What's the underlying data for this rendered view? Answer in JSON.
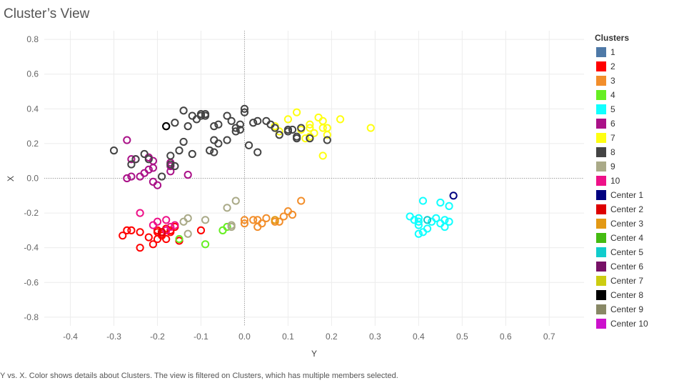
{
  "title": "Cluster’s View",
  "caption": "Y vs. X.  Color shows details about Clusters. The view is filtered on Clusters, which has multiple members selected.",
  "chart_data": {
    "type": "scatter",
    "xlabel": "Y",
    "ylabel": "X",
    "xlim": [
      -0.46,
      0.78
    ],
    "ylim": [
      -0.85,
      0.85
    ],
    "x_ticks": [
      "-0.4",
      "-0.3",
      "-0.2",
      "-0.1",
      "0.0",
      "0.1",
      "0.2",
      "0.3",
      "0.4",
      "0.5",
      "0.6",
      "0.7"
    ],
    "x_tick_values": [
      -0.4,
      -0.3,
      -0.2,
      -0.1,
      0.0,
      0.1,
      0.2,
      0.3,
      0.4,
      0.5,
      0.6,
      0.7
    ],
    "y_ticks": [
      "0.8",
      "0.6",
      "0.4",
      "0.2",
      "0.0",
      "-0.2",
      "-0.4",
      "-0.6",
      "-0.8"
    ],
    "y_tick_values": [
      0.8,
      0.6,
      0.4,
      0.2,
      0.0,
      -0.2,
      -0.4,
      -0.6,
      -0.8
    ],
    "grid": true,
    "zero_lines": true,
    "legend": {
      "title": "Clusters",
      "position": "right",
      "items": [
        {
          "label": "1",
          "color": "#4e79a7"
        },
        {
          "label": "2",
          "color": "#ff0000"
        },
        {
          "label": "3",
          "color": "#f28e2b"
        },
        {
          "label": "4",
          "color": "#66ee22"
        },
        {
          "label": "5",
          "color": "#11ffff"
        },
        {
          "label": "6",
          "color": "#aa1188"
        },
        {
          "label": "7",
          "color": "#ffff11"
        },
        {
          "label": "8",
          "color": "#444444"
        },
        {
          "label": "9",
          "color": "#aaaa88"
        },
        {
          "label": "10",
          "color": "#ee1188"
        },
        {
          "label": "Center 1",
          "color": "#000080"
        },
        {
          "label": "Center 2",
          "color": "#dd0000"
        },
        {
          "label": "Center 3",
          "color": "#e39914"
        },
        {
          "label": "Center 4",
          "color": "#44bb11"
        },
        {
          "label": "Center 5",
          "color": "#11cccc"
        },
        {
          "label": "Center 6",
          "color": "#771166"
        },
        {
          "label": "Center 7",
          "color": "#cccc11"
        },
        {
          "label": "Center 8",
          "color": "#000000"
        },
        {
          "label": "Center 9",
          "color": "#888866"
        },
        {
          "label": "Center 10",
          "color": "#cc11cc"
        }
      ]
    },
    "series": [
      {
        "name": "2",
        "color": "#ff0000",
        "points": [
          [
            -0.28,
            -0.33
          ],
          [
            -0.27,
            -0.3
          ],
          [
            -0.26,
            -0.3
          ],
          [
            -0.24,
            -0.31
          ],
          [
            -0.22,
            -0.34
          ],
          [
            -0.2,
            -0.31
          ],
          [
            -0.2,
            -0.3
          ],
          [
            -0.19,
            -0.31
          ],
          [
            -0.19,
            -0.33
          ],
          [
            -0.18,
            -0.35
          ],
          [
            -0.18,
            -0.29
          ],
          [
            -0.17,
            -0.31
          ],
          [
            -0.17,
            -0.3
          ],
          [
            -0.16,
            -0.28
          ],
          [
            -0.15,
            -0.36
          ],
          [
            -0.1,
            -0.3
          ],
          [
            -0.24,
            -0.4
          ],
          [
            -0.21,
            -0.38
          ],
          [
            -0.2,
            -0.35
          ],
          [
            -0.19,
            -0.32
          ]
        ]
      },
      {
        "name": "3",
        "color": "#f28e2b",
        "points": [
          [
            0.0,
            -0.24
          ],
          [
            0.0,
            -0.26
          ],
          [
            0.03,
            -0.24
          ],
          [
            0.03,
            -0.28
          ],
          [
            0.04,
            -0.26
          ],
          [
            0.05,
            -0.23
          ],
          [
            0.07,
            -0.25
          ],
          [
            0.08,
            -0.25
          ],
          [
            0.09,
            -0.22
          ],
          [
            0.1,
            -0.19
          ],
          [
            0.11,
            -0.21
          ],
          [
            0.13,
            -0.13
          ],
          [
            0.02,
            -0.24
          ]
        ]
      },
      {
        "name": "4",
        "color": "#66ee22",
        "points": [
          [
            -0.15,
            -0.35
          ],
          [
            -0.09,
            -0.38
          ],
          [
            -0.05,
            -0.3
          ],
          [
            -0.04,
            -0.28
          ]
        ]
      },
      {
        "name": "5",
        "color": "#11ffff",
        "points": [
          [
            0.38,
            -0.22
          ],
          [
            0.39,
            -0.24
          ],
          [
            0.4,
            -0.23
          ],
          [
            0.4,
            -0.25
          ],
          [
            0.4,
            -0.32
          ],
          [
            0.41,
            -0.31
          ],
          [
            0.41,
            -0.13
          ],
          [
            0.42,
            -0.29
          ],
          [
            0.43,
            -0.25
          ],
          [
            0.44,
            -0.23
          ],
          [
            0.45,
            -0.14
          ],
          [
            0.45,
            -0.26
          ],
          [
            0.46,
            -0.28
          ],
          [
            0.46,
            -0.24
          ],
          [
            0.47,
            -0.25
          ],
          [
            0.47,
            -0.16
          ],
          [
            0.4,
            -0.27
          ]
        ]
      },
      {
        "name": "6",
        "color": "#aa1188",
        "points": [
          [
            -0.27,
            0.22
          ],
          [
            -0.27,
            0.0
          ],
          [
            -0.26,
            0.01
          ],
          [
            -0.26,
            0.11
          ],
          [
            -0.25,
            0.11
          ],
          [
            -0.24,
            0.01
          ],
          [
            -0.23,
            0.03
          ],
          [
            -0.22,
            0.05
          ],
          [
            -0.22,
            0.12
          ],
          [
            -0.21,
            0.06
          ],
          [
            -0.21,
            0.1
          ],
          [
            -0.21,
            -0.02
          ],
          [
            -0.2,
            -0.04
          ],
          [
            -0.17,
            0.04
          ],
          [
            -0.17,
            0.09
          ],
          [
            -0.17,
            0.07
          ],
          [
            -0.13,
            0.02
          ]
        ]
      },
      {
        "name": "7",
        "color": "#ffff11",
        "points": [
          [
            0.07,
            0.3
          ],
          [
            0.08,
            0.27
          ],
          [
            0.1,
            0.34
          ],
          [
            0.12,
            0.38
          ],
          [
            0.13,
            0.28
          ],
          [
            0.15,
            0.31
          ],
          [
            0.15,
            0.29
          ],
          [
            0.15,
            0.24
          ],
          [
            0.16,
            0.26
          ],
          [
            0.17,
            0.35
          ],
          [
            0.18,
            0.29
          ],
          [
            0.18,
            0.33
          ],
          [
            0.18,
            0.13
          ],
          [
            0.19,
            0.29
          ],
          [
            0.19,
            0.25
          ],
          [
            0.22,
            0.34
          ],
          [
            0.29,
            0.29
          ],
          [
            0.14,
            0.23
          ]
        ]
      },
      {
        "name": "8",
        "color": "#444444",
        "points": [
          [
            -0.3,
            0.16
          ],
          [
            -0.26,
            0.08
          ],
          [
            -0.25,
            0.11
          ],
          [
            -0.23,
            0.14
          ],
          [
            -0.22,
            0.11
          ],
          [
            -0.19,
            0.01
          ],
          [
            -0.18,
            0.3
          ],
          [
            -0.17,
            0.13
          ],
          [
            -0.17,
            0.08
          ],
          [
            -0.16,
            0.07
          ],
          [
            -0.16,
            0.32
          ],
          [
            -0.15,
            0.16
          ],
          [
            -0.14,
            0.39
          ],
          [
            -0.14,
            0.21
          ],
          [
            -0.13,
            0.3
          ],
          [
            -0.12,
            0.36
          ],
          [
            -0.12,
            0.14
          ],
          [
            -0.11,
            0.34
          ],
          [
            -0.1,
            0.36
          ],
          [
            -0.1,
            0.37
          ],
          [
            -0.09,
            0.36
          ],
          [
            -0.09,
            0.37
          ],
          [
            -0.08,
            0.16
          ],
          [
            -0.07,
            0.3
          ],
          [
            -0.07,
            0.15
          ],
          [
            -0.07,
            0.22
          ],
          [
            -0.06,
            0.31
          ],
          [
            -0.06,
            0.2
          ],
          [
            -0.04,
            0.22
          ],
          [
            -0.04,
            0.36
          ],
          [
            -0.03,
            0.33
          ],
          [
            -0.02,
            0.29
          ],
          [
            -0.02,
            0.27
          ],
          [
            -0.01,
            0.28
          ],
          [
            -0.01,
            0.31
          ],
          [
            0.0,
            0.38
          ],
          [
            0.0,
            0.4
          ],
          [
            0.01,
            0.19
          ],
          [
            0.02,
            0.32
          ],
          [
            0.03,
            0.15
          ],
          [
            0.03,
            0.33
          ],
          [
            0.05,
            0.33
          ],
          [
            0.06,
            0.31
          ],
          [
            0.07,
            0.29
          ],
          [
            0.08,
            0.25
          ],
          [
            0.1,
            0.27
          ],
          [
            0.1,
            0.28
          ],
          [
            0.11,
            0.28
          ],
          [
            0.12,
            0.23
          ],
          [
            0.12,
            0.24
          ],
          [
            0.13,
            0.29
          ],
          [
            0.15,
            0.23
          ],
          [
            0.19,
            0.22
          ]
        ]
      },
      {
        "name": "9",
        "color": "#aaaa88",
        "points": [
          [
            -0.14,
            -0.25
          ],
          [
            -0.13,
            -0.23
          ],
          [
            -0.13,
            -0.32
          ],
          [
            -0.09,
            -0.24
          ],
          [
            -0.04,
            -0.17
          ],
          [
            -0.03,
            -0.27
          ],
          [
            -0.03,
            -0.28
          ],
          [
            -0.02,
            -0.13
          ]
        ]
      },
      {
        "name": "10",
        "color": "#ee1188",
        "points": [
          [
            -0.24,
            -0.2
          ],
          [
            -0.21,
            -0.27
          ],
          [
            -0.2,
            -0.25
          ],
          [
            -0.18,
            -0.24
          ],
          [
            -0.18,
            -0.3
          ],
          [
            -0.17,
            -0.28
          ],
          [
            -0.16,
            -0.27
          ]
        ]
      },
      {
        "name": "Center 1",
        "color": "#000080",
        "points": [
          [
            0.48,
            -0.1
          ]
        ]
      },
      {
        "name": "Center 2",
        "color": "#dd0000",
        "points": [
          [
            -0.19,
            -0.31
          ]
        ]
      },
      {
        "name": "Center 3",
        "color": "#e39914",
        "points": [
          [
            0.07,
            -0.24
          ]
        ]
      },
      {
        "name": "Center 5",
        "color": "#11cccc",
        "points": [
          [
            0.42,
            -0.24
          ]
        ]
      },
      {
        "name": "Center 8",
        "color": "#000000",
        "points": [
          [
            -0.18,
            0.3
          ]
        ]
      }
    ]
  }
}
